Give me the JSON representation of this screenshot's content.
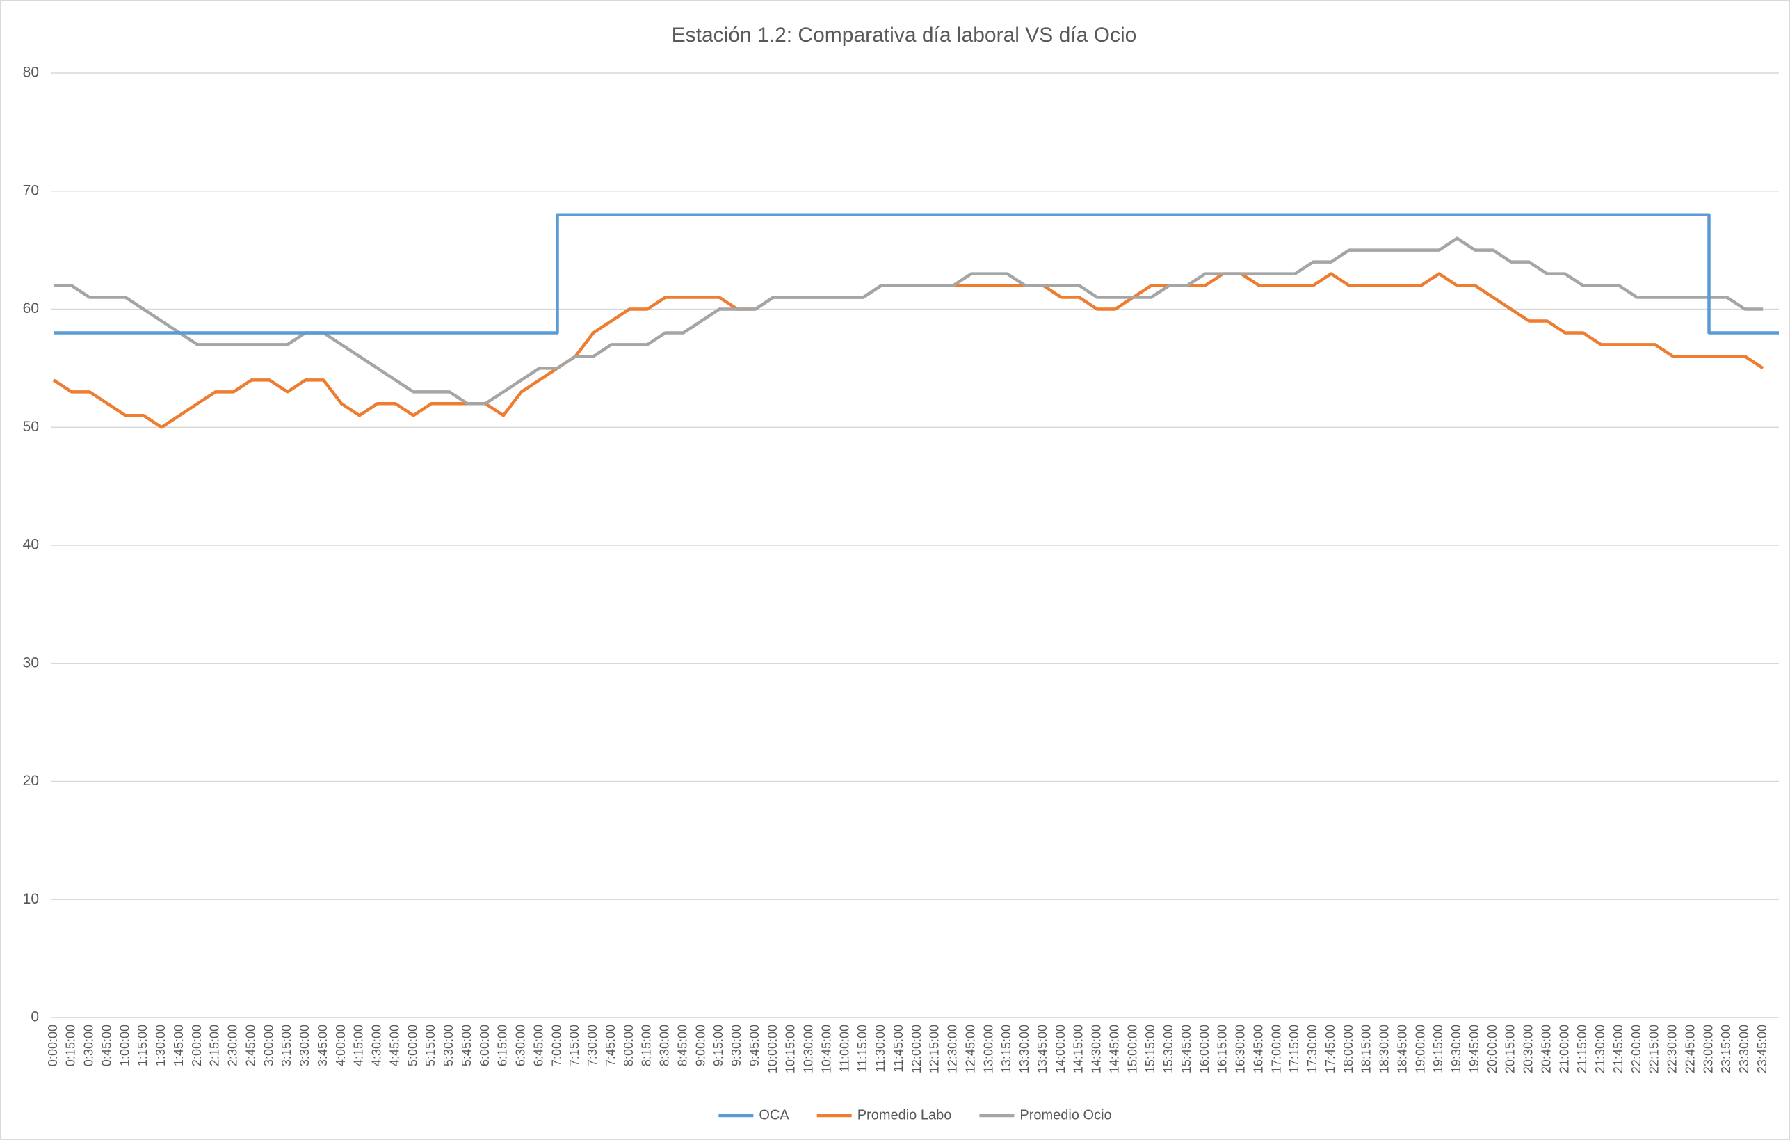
{
  "chart_data": {
    "type": "line",
    "title": "Estación 1.2: Comparativa día laboral VS día Ocio",
    "categories": [
      "0:00:00",
      "0:15:00",
      "0:30:00",
      "0:45:00",
      "1:00:00",
      "1:15:00",
      "1:30:00",
      "1:45:00",
      "2:00:00",
      "2:15:00",
      "2:30:00",
      "2:45:00",
      "3:00:00",
      "3:15:00",
      "3:30:00",
      "3:45:00",
      "4:00:00",
      "4:15:00",
      "4:30:00",
      "4:45:00",
      "5:00:00",
      "5:15:00",
      "5:30:00",
      "5:45:00",
      "6:00:00",
      "6:15:00",
      "6:30:00",
      "6:45:00",
      "7:00:00",
      "7:15:00",
      "7:30:00",
      "7:45:00",
      "8:00:00",
      "8:15:00",
      "8:30:00",
      "8:45:00",
      "9:00:00",
      "9:15:00",
      "9:30:00",
      "9:45:00",
      "10:00:00",
      "10:15:00",
      "10:30:00",
      "10:45:00",
      "11:00:00",
      "11:15:00",
      "11:30:00",
      "11:45:00",
      "12:00:00",
      "12:15:00",
      "12:30:00",
      "12:45:00",
      "13:00:00",
      "13:15:00",
      "13:30:00",
      "13:45:00",
      "14:00:00",
      "14:15:00",
      "14:30:00",
      "14:45:00",
      "15:00:00",
      "15:15:00",
      "15:30:00",
      "15:45:00",
      "16:00:00",
      "16:15:00",
      "16:30:00",
      "16:45:00",
      "17:00:00",
      "17:15:00",
      "17:30:00",
      "17:45:00",
      "18:00:00",
      "18:15:00",
      "18:30:00",
      "18:45:00",
      "19:00:00",
      "19:15:00",
      "19:30:00",
      "19:45:00",
      "20:00:00",
      "20:15:00",
      "20:30:00",
      "20:45:00",
      "21:00:00",
      "21:15:00",
      "21:30:00",
      "21:45:00",
      "22:00:00",
      "22:15:00",
      "22:30:00",
      "22:45:00",
      "23:00:00",
      "23:15:00",
      "23:30:00",
      "23:45:00"
    ],
    "series": [
      {
        "name": "OCA",
        "color": "#5b9bd5",
        "step": true,
        "values": [
          58,
          58,
          58,
          58,
          58,
          58,
          58,
          58,
          58,
          58,
          58,
          58,
          58,
          58,
          58,
          58,
          58,
          58,
          58,
          58,
          58,
          58,
          58,
          58,
          58,
          58,
          58,
          58,
          68,
          68,
          68,
          68,
          68,
          68,
          68,
          68,
          68,
          68,
          68,
          68,
          68,
          68,
          68,
          68,
          68,
          68,
          68,
          68,
          68,
          68,
          68,
          68,
          68,
          68,
          68,
          68,
          68,
          68,
          68,
          68,
          68,
          68,
          68,
          68,
          68,
          68,
          68,
          68,
          68,
          68,
          68,
          68,
          68,
          68,
          68,
          68,
          68,
          68,
          68,
          68,
          68,
          68,
          68,
          68,
          68,
          68,
          68,
          68,
          68,
          68,
          68,
          68,
          58,
          58,
          58,
          58
        ]
      },
      {
        "name": "Promedio Labo",
        "color": "#ed7d31",
        "values": [
          54,
          53,
          53,
          52,
          51,
          51,
          50,
          51,
          52,
          53,
          53,
          54,
          54,
          53,
          54,
          54,
          52,
          51,
          52,
          52,
          51,
          52,
          52,
          52,
          52,
          51,
          53,
          54,
          55,
          56,
          58,
          59,
          60,
          60,
          61,
          61,
          61,
          61,
          60,
          60,
          61,
          61,
          61,
          61,
          61,
          61,
          62,
          62,
          62,
          62,
          62,
          62,
          62,
          62,
          62,
          62,
          61,
          61,
          60,
          60,
          61,
          62,
          62,
          62,
          62,
          63,
          63,
          62,
          62,
          62,
          62,
          63,
          62,
          62,
          62,
          62,
          62,
          63,
          62,
          62,
          61,
          60,
          59,
          59,
          58,
          58,
          57,
          57,
          57,
          57,
          56,
          56,
          56,
          56,
          56,
          55
        ]
      },
      {
        "name": "Promedio Ocio",
        "color": "#a5a5a5",
        "values": [
          62,
          62,
          61,
          61,
          61,
          60,
          59,
          58,
          57,
          57,
          57,
          57,
          57,
          57,
          58,
          58,
          57,
          56,
          55,
          54,
          53,
          53,
          53,
          52,
          52,
          53,
          54,
          55,
          55,
          56,
          56,
          57,
          57,
          57,
          58,
          58,
          59,
          60,
          60,
          60,
          61,
          61,
          61,
          61,
          61,
          61,
          62,
          62,
          62,
          62,
          62,
          63,
          63,
          63,
          62,
          62,
          62,
          62,
          61,
          61,
          61,
          61,
          62,
          62,
          63,
          63,
          63,
          63,
          63,
          63,
          64,
          64,
          65,
          65,
          65,
          65,
          65,
          65,
          66,
          65,
          65,
          64,
          64,
          63,
          63,
          62,
          62,
          62,
          61,
          61,
          61,
          61,
          61,
          61,
          60,
          60
        ]
      }
    ],
    "ylim": [
      0,
      80
    ],
    "yticks": [
      0,
      10,
      20,
      30,
      40,
      50,
      60,
      70,
      80
    ],
    "grid": true,
    "legend": "bottom"
  }
}
